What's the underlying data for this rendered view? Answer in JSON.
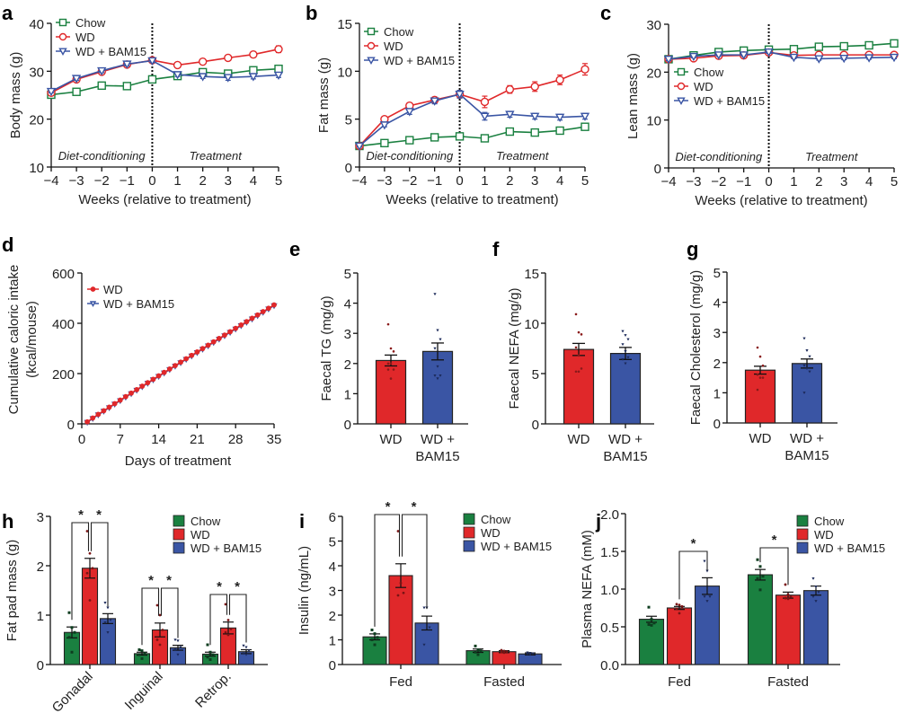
{
  "colors": {
    "chow": "#1a8040",
    "wd": "#e0282a",
    "bam": "#3a55a4",
    "axis": "#111111"
  },
  "panels": [
    {
      "letter": "a"
    },
    {
      "letter": "b"
    },
    {
      "letter": "c"
    },
    {
      "letter": "d"
    },
    {
      "letter": "e"
    },
    {
      "letter": "f"
    },
    {
      "letter": "g"
    },
    {
      "letter": "h"
    },
    {
      "letter": "i"
    },
    {
      "letter": "j"
    }
  ],
  "chart_data": [
    {
      "id": "a",
      "type": "line",
      "ylabel": "Body mass (g)",
      "xlabel": "Weeks (relative to treatment)",
      "x": [
        -4,
        -3,
        -2,
        -1,
        0,
        1,
        2,
        3,
        4,
        5
      ],
      "xticks": [
        "−4",
        "−3",
        "−2",
        "−1",
        "0",
        "1",
        "2",
        "3",
        "4",
        "5"
      ],
      "ylim": [
        10,
        40
      ],
      "yticks": [
        10,
        20,
        30,
        40
      ],
      "phases": [
        "Diet-conditioning",
        "Treatment"
      ],
      "divider_x": 0,
      "legend": [
        "Chow",
        "WD",
        "WD + BAM15"
      ],
      "legend_position": "top-left",
      "series": [
        {
          "name": "Chow",
          "marker": "square",
          "values": [
            25.1,
            25.7,
            27.0,
            26.9,
            28.3,
            29.0,
            29.8,
            29.5,
            30.2,
            30.5
          ],
          "err": [
            0.3,
            0.4,
            0.5,
            0.4,
            0.5,
            0.4,
            0.5,
            0.4,
            0.4,
            0.5
          ]
        },
        {
          "name": "WD",
          "marker": "circle",
          "values": [
            25.5,
            28.3,
            29.9,
            31.4,
            32.3,
            31.3,
            32.0,
            32.8,
            33.5,
            34.6
          ],
          "err": [
            0.3,
            0.4,
            0.4,
            0.4,
            0.4,
            0.4,
            0.5,
            0.5,
            0.6,
            0.7
          ]
        },
        {
          "name": "WD + BAM15",
          "marker": "triangle-down",
          "values": [
            25.8,
            28.5,
            30.1,
            31.5,
            32.2,
            29.3,
            28.9,
            28.7,
            28.9,
            29.2
          ],
          "err": [
            0.3,
            0.4,
            0.4,
            0.4,
            0.4,
            0.4,
            0.4,
            0.6,
            0.5,
            0.5
          ]
        }
      ]
    },
    {
      "id": "b",
      "type": "line",
      "ylabel": "Fat mass (g)",
      "xlabel": "Weeks (relative to treatment)",
      "x": [
        -4,
        -3,
        -2,
        -1,
        0,
        1,
        2,
        3,
        4,
        5
      ],
      "xticks": [
        "−4",
        "−3",
        "−2",
        "−1",
        "0",
        "1",
        "2",
        "3",
        "4",
        "5"
      ],
      "ylim": [
        0,
        15
      ],
      "yticks": [
        0,
        5,
        10,
        15
      ],
      "phases": [
        "Diet-conditioning",
        "Treatment"
      ],
      "divider_x": 0,
      "legend": [
        "Chow",
        "WD",
        "WD + BAM15"
      ],
      "legend_position": "top-left",
      "series": [
        {
          "name": "Chow",
          "marker": "square",
          "values": [
            2.2,
            2.5,
            2.8,
            3.1,
            3.2,
            3.0,
            3.7,
            3.6,
            3.8,
            4.2
          ],
          "err": [
            0.1,
            0.1,
            0.1,
            0.1,
            0.2,
            0.1,
            0.2,
            0.2,
            0.2,
            0.2
          ]
        },
        {
          "name": "WD",
          "marker": "circle",
          "values": [
            2.2,
            5.0,
            6.4,
            7.0,
            7.6,
            6.8,
            8.1,
            8.4,
            9.1,
            10.2
          ],
          "err": [
            0.1,
            0.2,
            0.3,
            0.3,
            0.4,
            0.6,
            0.4,
            0.5,
            0.5,
            0.6
          ]
        },
        {
          "name": "WD + BAM15",
          "marker": "triangle-down",
          "values": [
            2.2,
            4.4,
            5.8,
            6.9,
            7.6,
            5.3,
            5.5,
            5.3,
            5.2,
            5.3
          ],
          "err": [
            0.1,
            0.2,
            0.3,
            0.3,
            0.4,
            0.4,
            0.3,
            0.3,
            0.3,
            0.3
          ]
        }
      ]
    },
    {
      "id": "c",
      "type": "line",
      "ylabel": "Lean mass (g)",
      "xlabel": "Weeks (relative to treatment)",
      "x": [
        -4,
        -3,
        -2,
        -1,
        0,
        1,
        2,
        3,
        4,
        5
      ],
      "xticks": [
        "−4",
        "−3",
        "−2",
        "−1",
        "0",
        "1",
        "2",
        "3",
        "4",
        "5"
      ],
      "ylim": [
        0,
        30
      ],
      "yticks": [
        0,
        10,
        20,
        30
      ],
      "phases": [
        "Diet-conditioning",
        "Treatment"
      ],
      "divider_x": 0,
      "legend": [
        "Chow",
        "WD",
        "WD + BAM15"
      ],
      "legend_position": "middle-left",
      "series": [
        {
          "name": "Chow",
          "marker": "square",
          "values": [
            22.7,
            23.5,
            24.2,
            24.5,
            24.7,
            24.8,
            25.3,
            25.4,
            25.6,
            26.0
          ],
          "err": [
            0.3,
            0.3,
            0.3,
            0.3,
            0.3,
            0.3,
            0.3,
            0.3,
            0.3,
            0.3
          ]
        },
        {
          "name": "WD",
          "marker": "circle",
          "values": [
            22.7,
            22.9,
            23.4,
            23.5,
            24.1,
            23.5,
            23.6,
            23.6,
            23.6,
            23.6
          ],
          "err": [
            0.3,
            0.3,
            0.3,
            0.3,
            0.3,
            0.3,
            0.3,
            0.3,
            0.3,
            0.3
          ]
        },
        {
          "name": "WD + BAM15",
          "marker": "triangle-down",
          "values": [
            22.7,
            23.3,
            23.6,
            23.6,
            24.2,
            23.1,
            22.8,
            22.9,
            23.0,
            23.1
          ],
          "err": [
            0.3,
            0.3,
            0.3,
            0.3,
            0.3,
            0.3,
            0.3,
            0.3,
            0.3,
            0.3
          ]
        }
      ]
    },
    {
      "id": "d",
      "type": "line",
      "ylabel": "Cumulative caloric intake",
      "ylabel2": "(kcal/mouse)",
      "xlabel": "Days of treatment",
      "xlim": [
        0,
        35
      ],
      "xticks": [
        0,
        7,
        14,
        21,
        28,
        35
      ],
      "ylim": [
        0,
        600
      ],
      "yticks": [
        0,
        200,
        400,
        600
      ],
      "legend": [
        "WD",
        "WD + BAM15"
      ],
      "legend_position": "top-left",
      "series": [
        {
          "name": "WD",
          "marker": "circle-filled",
          "start_day": 1,
          "end_day": 35,
          "start": 8,
          "end": 473
        },
        {
          "name": "WD + BAM15",
          "marker": "triangle-down",
          "start_day": 1,
          "end_day": 35,
          "start": 6,
          "end": 470
        }
      ]
    },
    {
      "id": "e",
      "type": "bar",
      "ylabel": "Faecal TG (mg/g)",
      "ylim": [
        0,
        5
      ],
      "yticks": [
        0,
        1,
        2,
        3,
        4,
        5
      ],
      "categories": [
        "WD",
        "WD +|BAM15"
      ],
      "values": [
        2.1,
        2.4
      ],
      "err": [
        0.18,
        0.28
      ],
      "points": [
        [
          3.3,
          2.5,
          2.4,
          2.0,
          2.0,
          1.8,
          1.8,
          1.5
        ],
        [
          4.3,
          3.1,
          2.8,
          2.5,
          1.9,
          1.6,
          1.6,
          1.5
        ]
      ]
    },
    {
      "id": "f",
      "type": "bar",
      "ylabel": "Faecal NEFA (mg/g)",
      "ylim": [
        0,
        15
      ],
      "yticks": [
        0,
        5,
        10,
        15
      ],
      "categories": [
        "WD",
        "WD +|BAM15"
      ],
      "values": [
        7.4,
        7.0
      ],
      "err": [
        0.6,
        0.6
      ],
      "points": [
        [
          10.9,
          9.1,
          8.9,
          7.6,
          6.8,
          5.5,
          5.2,
          5.2
        ],
        [
          9.2,
          8.8,
          8.4,
          7.9,
          7.2,
          6.6,
          6.4,
          6.0
        ]
      ]
    },
    {
      "id": "g",
      "type": "bar",
      "ylabel": "Faecal Cholesterol (mg/g)",
      "ylim": [
        0,
        5
      ],
      "yticks": [
        0,
        1,
        2,
        3,
        4,
        5
      ],
      "categories": [
        "WD",
        "WD +|BAM15"
      ],
      "values": [
        1.75,
        1.97
      ],
      "err": [
        0.13,
        0.15
      ],
      "points": [
        [
          2.5,
          2.2,
          1.9,
          1.6,
          1.5,
          1.5,
          1.1
        ],
        [
          2.8,
          2.4,
          2.2,
          1.9,
          1.8,
          1.7,
          1.0
        ]
      ]
    },
    {
      "id": "h",
      "type": "bar",
      "ylabel": "Fat pad mass (g)",
      "ylim": [
        0,
        3
      ],
      "yticks": [
        0,
        1,
        2,
        3
      ],
      "categories": [
        "Gonadal",
        "Inguinal",
        "Retrop."
      ],
      "xtick_rotation": "-45deg",
      "legend": [
        "Chow",
        "WD",
        "WD + BAM15"
      ],
      "legend_position": "top-right",
      "series": [
        {
          "name": "Chow",
          "values": [
            0.65,
            0.22,
            0.21
          ],
          "err": [
            0.11,
            0.03,
            0.04
          ],
          "points": [
            [
              1.05,
              0.75,
              0.65,
              0.55,
              0.25
            ],
            [
              0.3,
              0.28,
              0.22,
              0.2,
              0.12
            ],
            [
              0.4,
              0.25,
              0.2,
              0.15,
              0.1
            ]
          ]
        },
        {
          "name": "WD",
          "values": [
            1.95,
            0.7,
            0.74
          ],
          "err": [
            0.2,
            0.14,
            0.12
          ],
          "points": [
            [
              2.7,
              2.25,
              1.95,
              1.85,
              1.3
            ],
            [
              1.2,
              1.0,
              0.7,
              0.5,
              0.4
            ],
            [
              1.22,
              0.9,
              0.72,
              0.65,
              0.6
            ]
          ]
        },
        {
          "name": "WD + BAM15",
          "values": [
            0.93,
            0.34,
            0.26
          ],
          "err": [
            0.1,
            0.05,
            0.04
          ],
          "points": [
            [
              1.25,
              1.15,
              0.9,
              0.85,
              0.65
            ],
            [
              0.5,
              0.48,
              0.35,
              0.3,
              0.2
            ],
            [
              0.38,
              0.35,
              0.28,
              0.22,
              0.2
            ]
          ]
        }
      ],
      "significance": [
        {
          "group": 0,
          "pairs": [
            [
              0,
              1
            ],
            [
              1,
              2
            ]
          ],
          "label": "*"
        },
        {
          "group": 1,
          "pairs": [
            [
              0,
              1
            ],
            [
              1,
              2
            ]
          ],
          "label": "*"
        },
        {
          "group": 2,
          "pairs": [
            [
              0,
              1
            ],
            [
              1,
              2
            ]
          ],
          "label": "*"
        }
      ]
    },
    {
      "id": "i",
      "type": "bar",
      "ylabel": "Insulin (ng/mL)",
      "ylim": [
        0,
        6
      ],
      "yticks": [
        0,
        1,
        2,
        3,
        4,
        5,
        6
      ],
      "categories": [
        "Fed",
        "Fasted"
      ],
      "legend": [
        "Chow",
        "WD",
        "WD + BAM15"
      ],
      "legend_position": "top-right",
      "series": [
        {
          "name": "Chow",
          "values": [
            1.12,
            0.56
          ],
          "err": [
            0.12,
            0.07
          ],
          "points": [
            [
              1.4,
              1.25,
              1.1,
              1.0,
              0.8
            ],
            [
              0.75,
              0.6,
              0.55,
              0.5,
              0.4
            ]
          ]
        },
        {
          "name": "WD",
          "values": [
            3.6,
            0.52
          ],
          "err": [
            0.48,
            0.04
          ],
          "points": [
            [
              5.4,
              3.3,
              2.9,
              2.8
            ],
            [
              0.58,
              0.55,
              0.52,
              0.5,
              0.48
            ]
          ]
        },
        {
          "name": "WD + BAM15",
          "values": [
            1.68,
            0.43
          ],
          "err": [
            0.28,
            0.04
          ],
          "points": [
            [
              2.3,
              2.3,
              1.5,
              0.8
            ],
            [
              0.48,
              0.46,
              0.44,
              0.42,
              0.4
            ]
          ]
        }
      ],
      "significance": [
        {
          "group": 0,
          "pairs": [
            [
              0,
              1
            ],
            [
              1,
              2
            ]
          ],
          "label": "*"
        }
      ]
    },
    {
      "id": "j",
      "type": "bar",
      "ylabel": "Plasma NEFA (mM)",
      "ylim": [
        0,
        2.0
      ],
      "yticks": [
        "0.0",
        "0.5",
        "1.0",
        "1.5",
        "2.0"
      ],
      "categories": [
        "Fed",
        "Fasted"
      ],
      "legend": [
        "Chow",
        "WD",
        "WD + BAM15"
      ],
      "legend_position": "top-right",
      "series": [
        {
          "name": "Chow",
          "values": [
            0.6,
            1.19
          ],
          "err": [
            0.04,
            0.07
          ],
          "points": [
            [
              0.76,
              0.6,
              0.55,
              0.53,
              0.52
            ],
            [
              1.39,
              1.3,
              1.17,
              1.14,
              0.99
            ]
          ]
        },
        {
          "name": "WD",
          "values": [
            0.75,
            0.92
          ],
          "err": [
            0.02,
            0.04
          ],
          "points": [
            [
              0.8,
              0.79,
              0.77,
              0.74,
              0.68
            ],
            [
              1.06,
              0.93,
              0.9,
              0.88,
              0.87
            ]
          ]
        },
        {
          "name": "WD + BAM15",
          "values": [
            1.04,
            0.98
          ],
          "err": [
            0.11,
            0.06
          ],
          "points": [
            [
              1.37,
              1.24,
              0.9,
              0.9,
              0.84
            ],
            [
              1.14,
              1.03,
              0.96,
              0.9,
              0.84
            ]
          ]
        }
      ],
      "significance": [
        {
          "group": 0,
          "pairs": [
            [
              1,
              2
            ]
          ],
          "label": "*"
        },
        {
          "group": 1,
          "pairs": [
            [
              0,
              1
            ]
          ],
          "label": "*"
        }
      ]
    }
  ]
}
